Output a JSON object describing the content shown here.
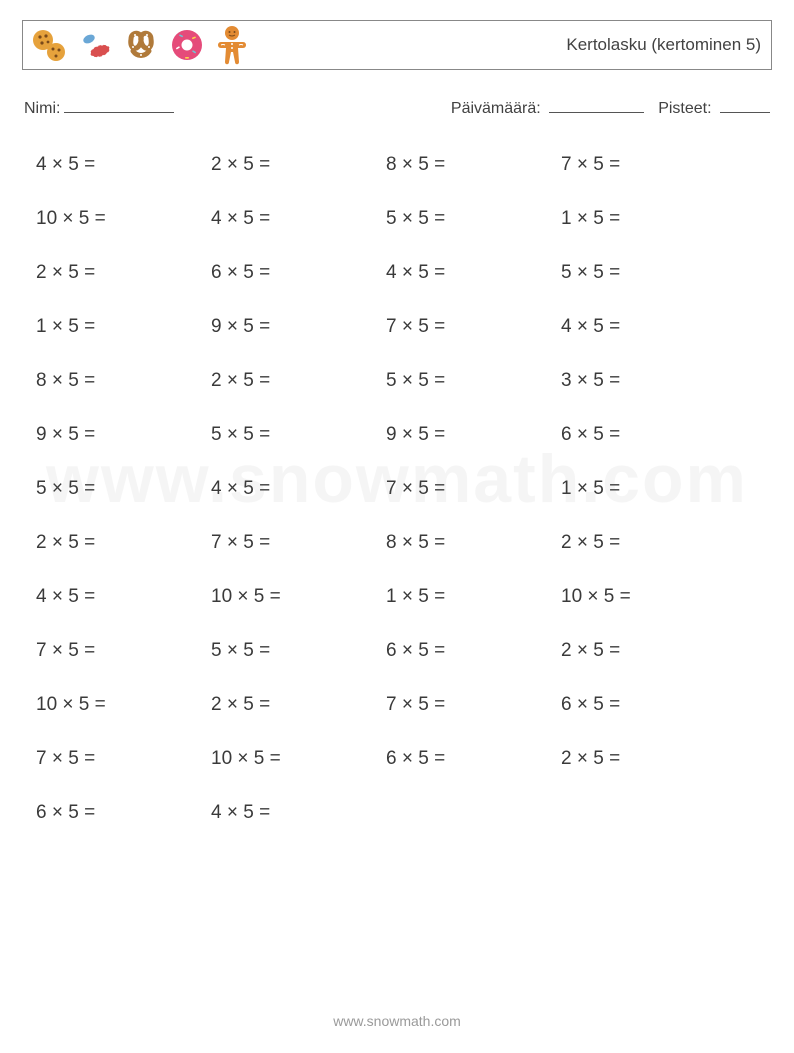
{
  "header": {
    "title": "Kertolasku (kertominen 5)",
    "icons": [
      "cookies-icon",
      "candy-icon",
      "pretzel-icon",
      "donut-icon",
      "gingerbread-icon"
    ]
  },
  "meta": {
    "name_label": "Nimi:",
    "date_label": "Päivämäärä:",
    "score_label": "Pisteet:"
  },
  "op": "×",
  "eq": "=",
  "columns": 4,
  "problems": [
    [
      4,
      5
    ],
    [
      2,
      5
    ],
    [
      8,
      5
    ],
    [
      7,
      5
    ],
    [
      10,
      5
    ],
    [
      4,
      5
    ],
    [
      5,
      5
    ],
    [
      1,
      5
    ],
    [
      2,
      5
    ],
    [
      6,
      5
    ],
    [
      4,
      5
    ],
    [
      5,
      5
    ],
    [
      1,
      5
    ],
    [
      9,
      5
    ],
    [
      7,
      5
    ],
    [
      4,
      5
    ],
    [
      8,
      5
    ],
    [
      2,
      5
    ],
    [
      5,
      5
    ],
    [
      3,
      5
    ],
    [
      9,
      5
    ],
    [
      5,
      5
    ],
    [
      9,
      5
    ],
    [
      6,
      5
    ],
    [
      5,
      5
    ],
    [
      4,
      5
    ],
    [
      7,
      5
    ],
    [
      1,
      5
    ],
    [
      2,
      5
    ],
    [
      7,
      5
    ],
    [
      8,
      5
    ],
    [
      2,
      5
    ],
    [
      4,
      5
    ],
    [
      10,
      5
    ],
    [
      1,
      5
    ],
    [
      10,
      5
    ],
    [
      7,
      5
    ],
    [
      5,
      5
    ],
    [
      6,
      5
    ],
    [
      2,
      5
    ],
    [
      10,
      5
    ],
    [
      2,
      5
    ],
    [
      7,
      5
    ],
    [
      6,
      5
    ],
    [
      7,
      5
    ],
    [
      10,
      5
    ],
    [
      6,
      5
    ],
    [
      2,
      5
    ],
    [
      6,
      5
    ],
    [
      4,
      5
    ]
  ],
  "watermark": "www.snowmath.com",
  "footer": "www.snowmath.com",
  "colors": {
    "text": "#424242",
    "border": "#888888",
    "cookie": "#e6a23c",
    "chip": "#7a4a1a",
    "candy_blue": "#6aa7d6",
    "candy_red": "#d94f4f",
    "pretzel": "#b07a3a",
    "donut_ring": "#e54b7a",
    "donut_sprinkle": "#6bc6d6",
    "ginger": "#e38b33"
  }
}
